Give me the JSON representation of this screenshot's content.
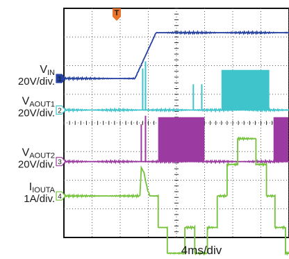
{
  "chart_data": {
    "type": "line",
    "title": "",
    "xlabel": "4ms/div",
    "x_divisions": 10,
    "y_divisions": 8,
    "grid": true,
    "trigger_marker": "T",
    "x_unit": "ms",
    "series": [
      {
        "key": "vin",
        "label_main": "V",
        "label_sub": "IN",
        "scale": "20V/div.",
        "marker": "1",
        "color": "#2440a0",
        "ground_div": 2.45,
        "segments": [
          {
            "kind": "line",
            "points": [
              [
                0,
                0
              ],
              [
                10.1,
                0
              ],
              [
                13.1,
                1.6
              ],
              [
                40,
                1.6
              ]
            ]
          }
        ]
      },
      {
        "key": "vaout1",
        "label_main": "V",
        "label_sub": "AOUT1",
        "scale": "20V/div.",
        "marker": "2",
        "color": "#40c4cc",
        "ground_div": 3.55,
        "segments": [
          {
            "kind": "line",
            "points": [
              [
                0,
                0
              ],
              [
                40,
                0
              ]
            ]
          },
          {
            "kind": "spike",
            "x": 11.2,
            "height": 1.45
          },
          {
            "kind": "spike",
            "x": 11.6,
            "height": 1.7
          },
          {
            "kind": "spike",
            "x": 18.4,
            "height": 0.9
          },
          {
            "kind": "spike",
            "x": 19.6,
            "height": 0.9
          },
          {
            "kind": "block",
            "x0": 22.4,
            "x1": 29.2,
            "height": 1.4
          },
          {
            "kind": "spike",
            "x": 34.9,
            "height": 0.9
          },
          {
            "kind": "spike",
            "x": 35.7,
            "height": 0.9
          },
          {
            "kind": "block",
            "x0": 37.2,
            "x1": 40,
            "height": 1.4
          }
        ]
      },
      {
        "key": "vaout2",
        "label_main": "V",
        "label_sub": "AOUT2",
        "scale": "20V/div.",
        "marker": "3",
        "color": "#9b3aa0",
        "ground_div": 5.35,
        "segments": [
          {
            "kind": "line",
            "points": [
              [
                0,
                0
              ],
              [
                40,
                0
              ]
            ]
          },
          {
            "kind": "spike",
            "x": 11.0,
            "height": 1.3
          },
          {
            "kind": "spike",
            "x": 11.6,
            "height": 1.6
          },
          {
            "kind": "block",
            "x0": 13.4,
            "x1": 20.0,
            "height": 1.55
          },
          {
            "kind": "block",
            "x0": 29.8,
            "x1": 36.3,
            "height": 1.55
          }
        ]
      },
      {
        "key": "iouta",
        "label_main": "I",
        "label_sub": "IOUTA",
        "scale": "1A/div.",
        "marker": "4",
        "color": "#74c23a",
        "ground_div": 6.55,
        "segments": [
          {
            "kind": "line",
            "points": [
              [
                0,
                0
              ],
              [
                10.8,
                0
              ],
              [
                11.0,
                1.0
              ],
              [
                11.4,
                0.8
              ],
              [
                11.8,
                0.3
              ],
              [
                12.2,
                0
              ],
              [
                13.4,
                0
              ],
              [
                13.4,
                -1.1
              ],
              [
                14.7,
                -1.1
              ],
              [
                14.7,
                -2.0
              ],
              [
                17.2,
                -2.0
              ],
              [
                17.2,
                -1.1
              ],
              [
                18.6,
                -1.1
              ],
              [
                18.6,
                -2.0
              ],
              [
                20.4,
                -2.0
              ],
              [
                20.4,
                -1.1
              ],
              [
                21.8,
                -1.1
              ],
              [
                21.8,
                0
              ],
              [
                23.2,
                0
              ],
              [
                23.2,
                1.1
              ],
              [
                24.7,
                1.1
              ],
              [
                24.7,
                2.0
              ],
              [
                27.3,
                2.0
              ],
              [
                27.3,
                1.1
              ],
              [
                28.8,
                1.1
              ],
              [
                28.8,
                0
              ],
              [
                30.0,
                0
              ],
              [
                30.0,
                -1.1
              ],
              [
                31.5,
                -1.1
              ],
              [
                31.5,
                -2.0
              ],
              [
                34.2,
                -2.0
              ],
              [
                34.2,
                -1.1
              ],
              [
                35.6,
                -1.1
              ],
              [
                35.6,
                -2.0
              ],
              [
                37.4,
                -2.0
              ],
              [
                37.4,
                -1.1
              ],
              [
                38.8,
                -1.1
              ],
              [
                38.8,
                0
              ],
              [
                40,
                0
              ]
            ]
          }
        ]
      }
    ]
  }
}
